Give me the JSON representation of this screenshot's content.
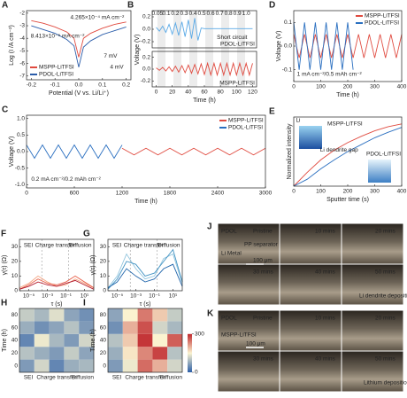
{
  "chart_data": [
    {
      "panel": "A",
      "type": "line",
      "xlabel": "Potential (V vs. Li/Li⁺)",
      "ylabel": "Log (I /A cm⁻²)",
      "x": [
        -0.2,
        -0.15,
        -0.1,
        -0.05,
        -0.02,
        0,
        0.02,
        0.05,
        0.1,
        0.15,
        0.2
      ],
      "series": [
        {
          "name": "MSPP-LiTFSI",
          "color": "#e04a3f",
          "values": [
            -2.6,
            -2.8,
            -3.1,
            -3.5,
            -4.0,
            -5.5,
            -4.0,
            -3.6,
            -3.2,
            -2.9,
            -2.7
          ]
        },
        {
          "name": "PDOL-LiTFSI",
          "color": "#2a5caa",
          "values": [
            -3.0,
            -3.3,
            -3.6,
            -4.1,
            -4.6,
            -6.3,
            -4.7,
            -4.2,
            -3.7,
            -3.4,
            -3.1
          ]
        }
      ],
      "xlim": [
        -0.22,
        0.22
      ],
      "xticks": [
        -0.2,
        -0.1,
        {
          "value": 0,
          "label": "0.0"
        },
        0.1,
        0.2
      ],
      "ylim": [
        -7.3,
        -1.8
      ],
      "yticks": [
        -2,
        -3,
        -4,
        -5,
        -6,
        -7
      ],
      "legend": "lower left",
      "annotations": [
        "4.265×10⁻⁴ mA cm⁻²",
        "8.413×10⁻⁵ mA cm⁻²",
        "7 mV",
        "4 mV"
      ]
    },
    {
      "panel": "B",
      "type": "line",
      "x": [
        0,
        4,
        8,
        12,
        16,
        20,
        24,
        28,
        32,
        36,
        40,
        44,
        48,
        52,
        56,
        60,
        80,
        100,
        120
      ],
      "series": [
        {
          "name": "PDOL-LiTFSI",
          "color": "#5aa9e6",
          "values": [
            0.03,
            -0.03,
            0.05,
            -0.05,
            0.08,
            -0.08,
            0.1,
            -0.1,
            0.12,
            -0.12,
            0.15,
            -0.15,
            0.18,
            -0.18,
            0.02,
            0.01,
            0.01,
            0.01,
            0.01
          ]
        }
      ],
      "xlim": [
        -5,
        125
      ],
      "ylim": [
        -0.3,
        0.3
      ],
      "yticks": [
        -0.2,
        {
          "value": 0,
          "label": "0.0"
        },
        0.2
      ],
      "annotations": [
        "0.05",
        "0.1",
        "0.2",
        "0.3",
        "0.4",
        "0.5",
        "0.6",
        "0.7",
        "0.8",
        "0.9",
        "1.0",
        "Short circuit"
      ]
    },
    {
      "type": "line",
      "xlabel": "Time (h)",
      "ylabel": "Voltage (V)",
      "x": [
        0,
        4,
        8,
        12,
        16,
        20,
        24,
        28,
        32,
        36,
        40,
        44,
        48,
        52,
        56,
        60,
        64,
        68,
        72,
        76,
        80,
        84,
        88,
        92,
        96,
        100,
        104,
        108,
        112,
        116,
        120
      ],
      "series": [
        {
          "name": "MSPP-LiTFSI",
          "color": "#e04a3f",
          "values": [
            0.02,
            -0.02,
            0.03,
            -0.03,
            0.04,
            -0.04,
            0.05,
            -0.05,
            0.06,
            -0.06,
            0.07,
            -0.07,
            0.08,
            -0.08,
            0.09,
            -0.09,
            0.1,
            -0.1,
            0.1,
            -0.1,
            0.1,
            -0.1,
            0.1,
            -0.1,
            0.1,
            -0.1,
            0.1,
            -0.1,
            0.1,
            -0.1,
            0.1
          ]
        }
      ],
      "xlim": [
        -5,
        125
      ],
      "xticks": [
        0,
        20,
        40,
        60,
        80,
        100,
        120
      ],
      "ylim": [
        -0.3,
        0.3
      ],
      "yticks": [
        -0.2,
        {
          "value": 0,
          "label": "0.0"
        },
        0.2
      ]
    },
    {
      "panel": "D",
      "type": "line",
      "xlabel": "Time (h)",
      "ylabel": "Voltage (V)",
      "series": [
        {
          "name": "MSPP-LiTFSI",
          "color": "#e04a3f",
          "x": [
            0,
            20,
            40,
            60,
            80,
            100,
            120,
            140,
            160,
            180,
            200,
            220,
            240,
            260,
            280,
            300,
            320,
            340,
            360,
            380,
            400
          ],
          "values": [
            0.05,
            -0.05,
            0.05,
            -0.05,
            0.05,
            -0.05,
            0.05,
            -0.05,
            0.05,
            -0.05,
            0.05,
            -0.05,
            0.05,
            -0.05,
            0.05,
            -0.05,
            0.05,
            -0.05,
            0.05,
            -0.05,
            0.05
          ]
        },
        {
          "name": "PDOL-LiTFSI",
          "color": "#2a6fc0",
          "x": [
            0,
            20,
            40,
            60,
            80,
            100,
            120,
            140,
            160,
            180,
            200,
            220
          ],
          "values": [
            0.1,
            -0.1,
            0.1,
            -0.1,
            0.1,
            -0.1,
            0.1,
            -0.1,
            0.1,
            -0.1,
            0.1,
            -0.1
          ]
        }
      ],
      "xlim": [
        0,
        400
      ],
      "xticks": [
        0,
        100,
        200,
        300,
        400
      ],
      "ylim": [
        -0.15,
        0.15
      ],
      "yticks": [
        -0.1,
        {
          "value": 0,
          "label": "0.0"
        },
        0.1
      ],
      "legend": "upper right",
      "annotations": [
        "1 mA cm⁻²/0.5 mAh cm⁻²"
      ]
    },
    {
      "panel": "C",
      "type": "line",
      "xlabel": "Time (h)",
      "ylabel": "Voltage (V)",
      "series": [
        {
          "name": "MSPP-LiTFSI",
          "color": "#e04a3f",
          "x": [
            1200,
            1350,
            1500,
            1650,
            1800,
            1950,
            2100,
            2250,
            2400,
            2550,
            2700,
            2850,
            3000
          ],
          "values": [
            0.1,
            -0.1,
            0.1,
            -0.1,
            0.1,
            -0.1,
            0.1,
            -0.1,
            0.1,
            -0.1,
            0.1,
            -0.1,
            0.1
          ]
        },
        {
          "name": "PDOL-LiTFSI",
          "color": "#2a6fc0",
          "x": [
            0,
            100,
            200,
            300,
            400,
            500,
            600,
            700,
            800,
            900,
            1000,
            1100,
            1200
          ],
          "values": [
            0.2,
            -0.2,
            0.2,
            -0.2,
            0.2,
            -0.2,
            0.2,
            -0.2,
            0.2,
            -0.2,
            0.2,
            -0.2,
            0.2
          ]
        }
      ],
      "xlim": [
        0,
        3000
      ],
      "xticks": [
        0,
        600,
        1200,
        1800,
        2400,
        3000
      ],
      "ylim": [
        -1.1,
        1.1
      ],
      "yticks": [
        {
          "value": -1,
          "label": "-1.0"
        },
        -0.5,
        {
          "value": 0,
          "label": "0.0"
        },
        0.5,
        {
          "value": 1,
          "label": "1.0"
        }
      ],
      "legend": "upper right",
      "annotations": [
        "0.2 mA cm⁻²/0.2 mAh cm⁻²"
      ]
    },
    {
      "panel": "E",
      "type": "line",
      "xlabel": "Sputter time (s)",
      "ylabel": "Normalized intensity",
      "x": [
        0,
        50,
        100,
        150,
        200,
        250,
        300,
        350,
        400
      ],
      "series": [
        {
          "name": "MSPP-LiTFSI",
          "color": "#e04a3f",
          "values": [
            0,
            0.2,
            0.38,
            0.52,
            0.63,
            0.72,
            0.8,
            0.86,
            0.9
          ]
        },
        {
          "name": "PDOL-LiTFSI",
          "color": "#2a6fc0",
          "values": [
            0,
            0.1,
            0.25,
            0.38,
            0.5,
            0.6,
            0.7,
            0.78,
            0.85
          ]
        }
      ],
      "xlim": [
        0,
        400
      ],
      "xticks": [
        0,
        100,
        200,
        300,
        400
      ],
      "ylim": [
        0,
        1
      ],
      "annotations": [
        "Li",
        "Li dendrite gap"
      ]
    },
    {
      "panel": "F",
      "type": "line",
      "xscale": "log",
      "xlabel": "τ (s)",
      "ylabel": "γ(τ) (Ω)",
      "x": [
        1e-06,
        1e-05,
        0.0001,
        0.001,
        0.01,
        0.1,
        1,
        10,
        100
      ],
      "series": [
        {
          "color": "#f4a582",
          "values": [
            2,
            5,
            10,
            6,
            3,
            4,
            8,
            5,
            2
          ]
        },
        {
          "color": "#e8604a",
          "values": [
            1,
            4,
            8,
            5,
            4,
            6,
            10,
            6,
            2
          ]
        },
        {
          "color": "#b2182b",
          "values": [
            1,
            3,
            6,
            4,
            3,
            5,
            7,
            4,
            1
          ]
        }
      ],
      "xlim": [
        1e-06,
        100
      ],
      "xticks": [
        {
          "value": 1e-05,
          "label": "10⁻⁵"
        },
        {
          "value": 0.001,
          "label": "10⁻³"
        },
        {
          "value": 0.1,
          "label": "10⁻¹"
        },
        {
          "value": 10,
          "label": "10¹"
        }
      ],
      "ylim": [
        0,
        35
      ],
      "yticks": [
        0,
        10,
        20,
        30
      ],
      "annotations": [
        "SEI",
        "Charge transfer",
        "Diffusion"
      ]
    },
    {
      "panel": "G",
      "type": "line",
      "xscale": "log",
      "xlabel": "τ (s)",
      "ylabel": "γ(τ) (Ω)",
      "x": [
        1e-06,
        1e-05,
        0.0001,
        0.001,
        0.01,
        0.1,
        1,
        10,
        100
      ],
      "series": [
        {
          "color": "#92c5de",
          "values": [
            2,
            10,
            25,
            15,
            8,
            10,
            22,
            25,
            5
          ]
        },
        {
          "color": "#4393c3",
          "values": [
            1,
            8,
            20,
            18,
            10,
            12,
            20,
            28,
            6
          ]
        },
        {
          "color": "#2166ac",
          "values": [
            2,
            6,
            15,
            10,
            6,
            8,
            15,
            18,
            3
          ]
        }
      ],
      "xlim": [
        1e-06,
        100
      ],
      "xticks": [
        {
          "value": 1e-05,
          "label": "10⁻⁵"
        },
        {
          "value": 0.001,
          "label": "10⁻³"
        },
        {
          "value": 0.1,
          "label": "10⁻¹"
        },
        {
          "value": 10,
          "label": "10¹"
        }
      ],
      "ylim": [
        0,
        35
      ],
      "yticks": [
        0,
        10,
        20,
        30
      ],
      "annotations": [
        "SEI",
        "Charge transfer",
        "Diffusion"
      ]
    },
    {
      "panel": "H",
      "type": "heatmap",
      "ylabel": "Time (h)",
      "categories": [
        "SEI",
        "Charge transfer",
        "Diffusion"
      ],
      "y": [
        0,
        20,
        40,
        60,
        80
      ],
      "ylim": [
        -10,
        90
      ],
      "yticks": [
        0,
        20,
        40,
        60,
        80
      ],
      "zlim": [
        0,
        300
      ],
      "z": [
        [
          60,
          120,
          40,
          80,
          90
        ],
        [
          100,
          80,
          60,
          110,
          70
        ],
        [
          40,
          140,
          90,
          60,
          120
        ],
        [
          80,
          50,
          70,
          100,
          60
        ],
        [
          110,
          90,
          130,
          70,
          50
        ]
      ]
    },
    {
      "panel": "I",
      "type": "heatmap",
      "ylabel": "Time (h)",
      "categories": [
        "SEI",
        "Charge transfer",
        "Diffusion"
      ],
      "y": [
        0,
        20,
        40,
        60,
        80
      ],
      "ylim": [
        -10,
        90
      ],
      "yticks": [
        0,
        20,
        40,
        60,
        80
      ],
      "zlim": [
        0,
        300
      ],
      "zticks": [
        0,
        300
      ],
      "z": [
        [
          60,
          140,
          250,
          200,
          120
        ],
        [
          80,
          160,
          230,
          280,
          100
        ],
        [
          100,
          180,
          290,
          150,
          260
        ],
        [
          50,
          200,
          270,
          120,
          90
        ],
        [
          70,
          150,
          240,
          180,
          110
        ]
      ]
    }
  ],
  "images": [
    {
      "panel": "J",
      "labels": [
        "PDOL",
        "PP separator",
        "Li Metal",
        "100 μm",
        "Pristine",
        "10 mins",
        "20 mins",
        "30 mins",
        "40 mins",
        "50 mins",
        "Li dendrite deposition area"
      ]
    },
    {
      "panel": "K",
      "labels": [
        "PDOL",
        "MSPP-LiTFSI",
        "100 μm",
        "Pristine",
        "10 mins",
        "20 mins",
        "30 mins",
        "40 mins",
        "50 mins",
        "Lithium deposition"
      ]
    }
  ]
}
